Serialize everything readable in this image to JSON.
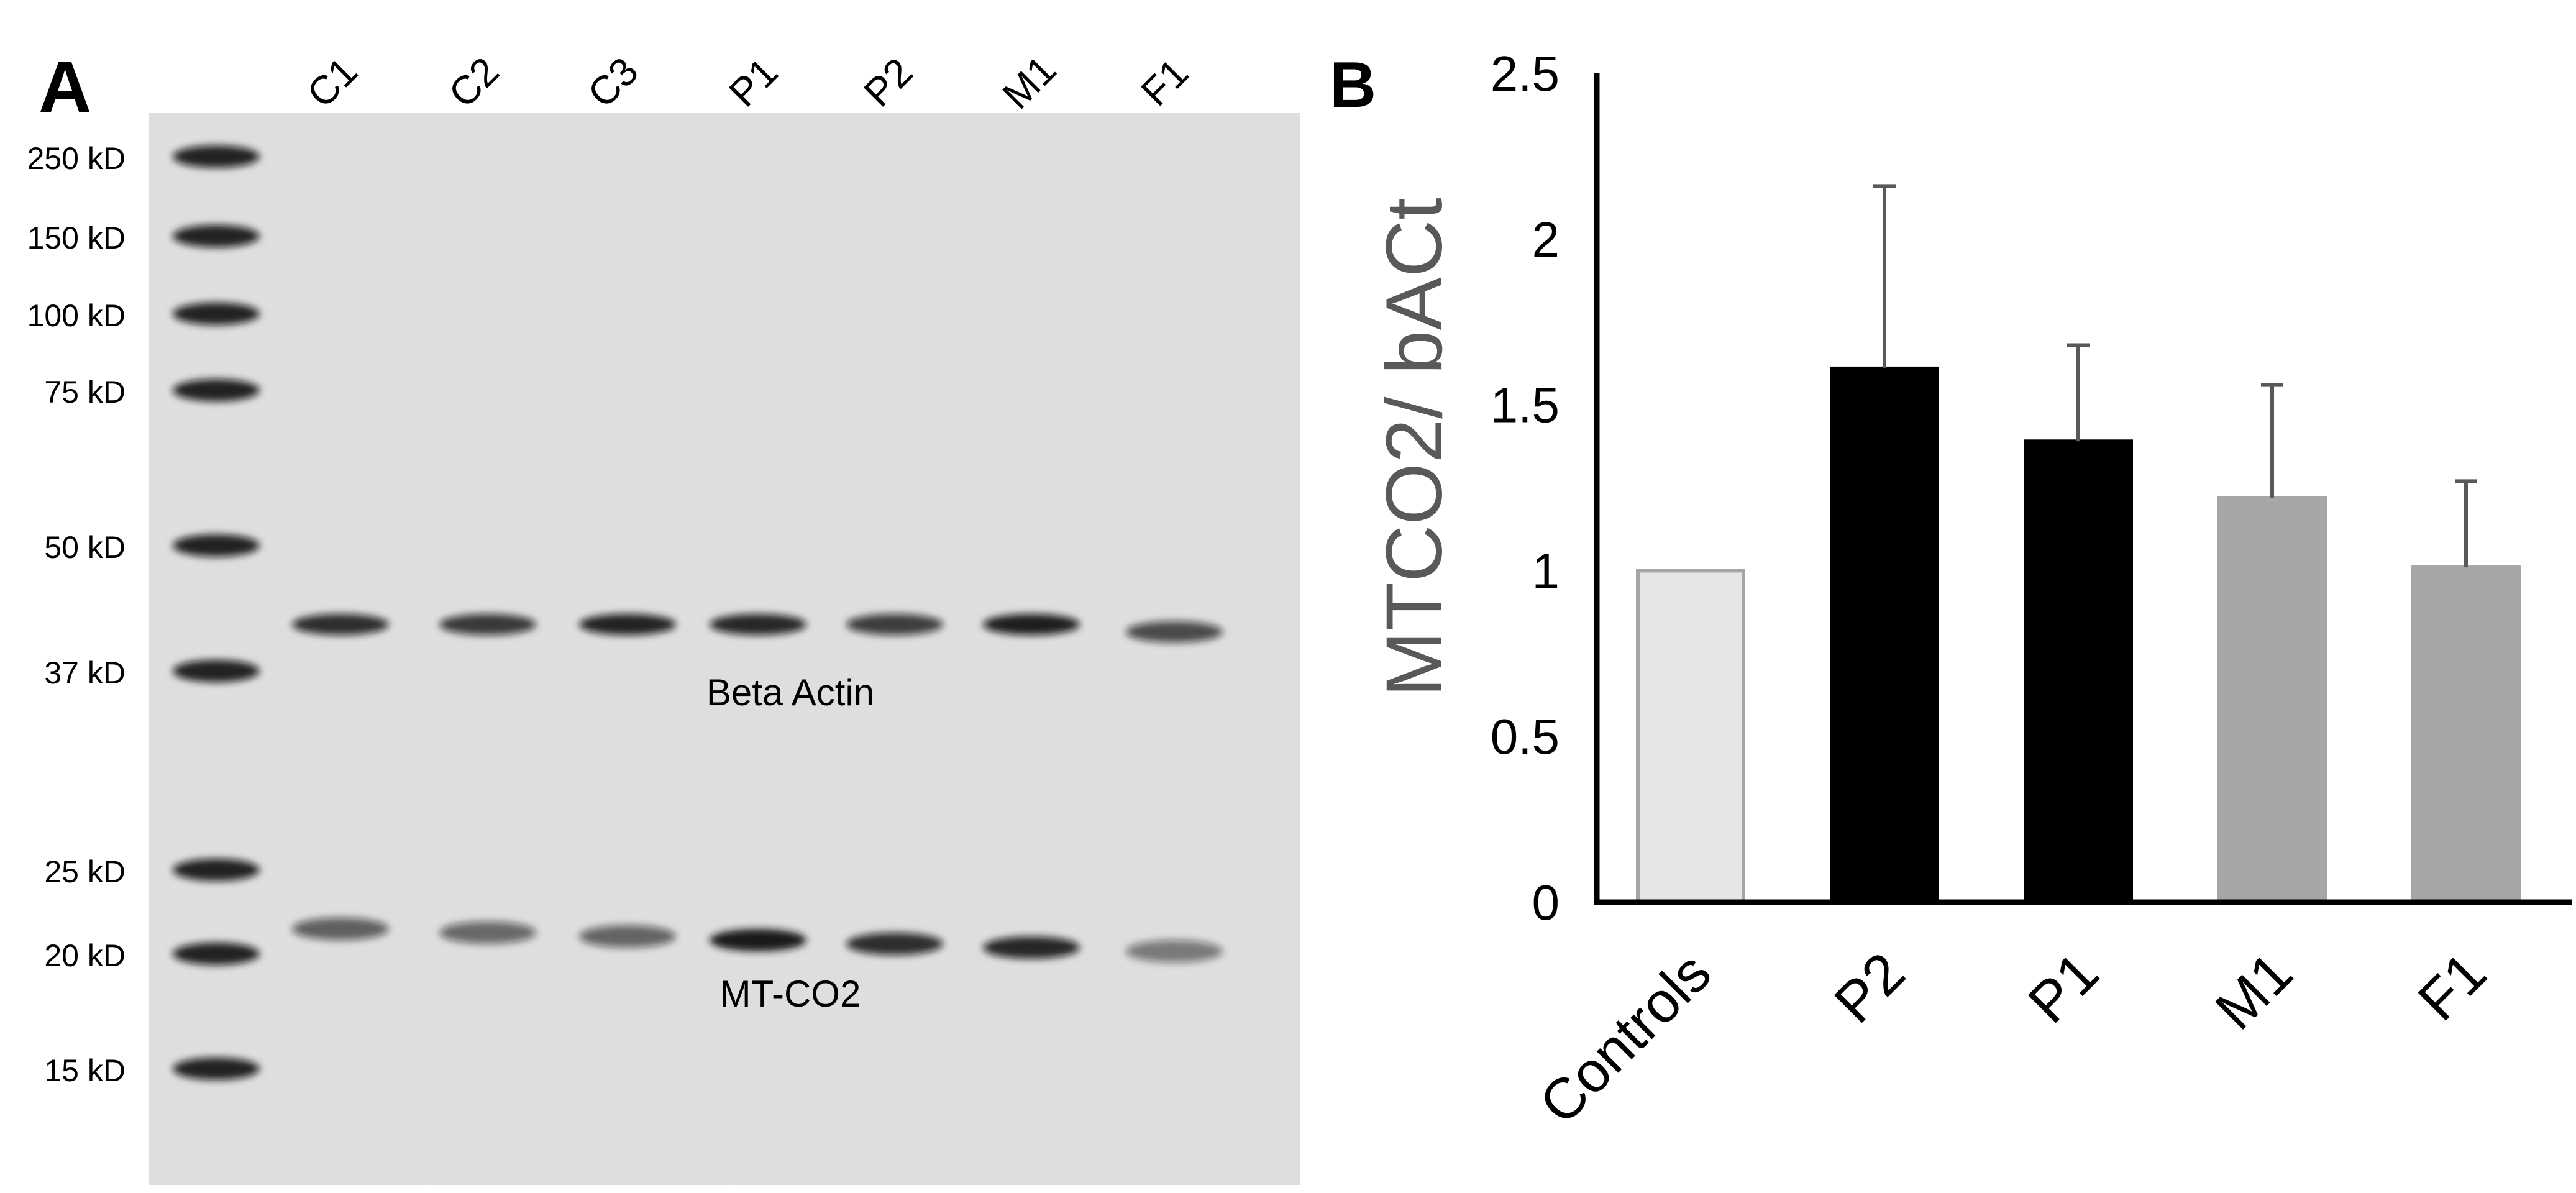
{
  "panel_a": {
    "letter": "A",
    "lane_labels": [
      "C1",
      "C2",
      "C3",
      "P1",
      "P2",
      "M1",
      "F1"
    ],
    "ladder_markers": [
      {
        "label": "250 kD",
        "kd": 250
      },
      {
        "label": "150 kD",
        "kd": 150
      },
      {
        "label": "100 kD",
        "kd": 100
      },
      {
        "label": "75 kD",
        "kd": 75
      },
      {
        "label": "50 kD",
        "kd": 50
      },
      {
        "label": "37 kD",
        "kd": 37
      },
      {
        "label": "25 kD",
        "kd": 25
      },
      {
        "label": "20 kD",
        "kd": 20
      },
      {
        "label": "15 kD",
        "kd": 15
      }
    ],
    "band_labels": {
      "beta_actin": "Beta Actin",
      "mt_co2": "MT-CO2"
    },
    "band_intensity": {
      "beta_actin": [
        0.85,
        0.8,
        0.9,
        0.88,
        0.78,
        0.92,
        0.72
      ],
      "mt_co2": [
        0.62,
        0.58,
        0.6,
        0.98,
        0.85,
        0.88,
        0.5
      ]
    },
    "colors": {
      "gel": "#e2e2e2",
      "band": "#121212"
    }
  },
  "chart_data": {
    "type": "bar",
    "panel_letter": "B",
    "title": "",
    "xlabel": "",
    "ylabel": "MTCO2/ bACt",
    "categories": [
      "Controls",
      "P2",
      "P1",
      "M1",
      "F1"
    ],
    "values": [
      1.0,
      1.61,
      1.39,
      1.22,
      1.01
    ],
    "error_upper": [
      0,
      0.55,
      0.29,
      0.34,
      0.26
    ],
    "colors": [
      "#e6e6e6",
      "#000000",
      "#000000",
      "#a6a6a6",
      "#a6a6a6"
    ],
    "edge_colors": [
      "#a6a6a6",
      "#000000",
      "#000000",
      "#a6a6a6",
      "#a6a6a6"
    ],
    "ylim": [
      0,
      2.5
    ],
    "yticks": [
      "0",
      "0.5",
      "1",
      "1.5",
      "2",
      "2.5"
    ],
    "tick_values": [
      0,
      0.5,
      1,
      1.5,
      2,
      2.5
    ],
    "grid": false,
    "legend": "none"
  }
}
